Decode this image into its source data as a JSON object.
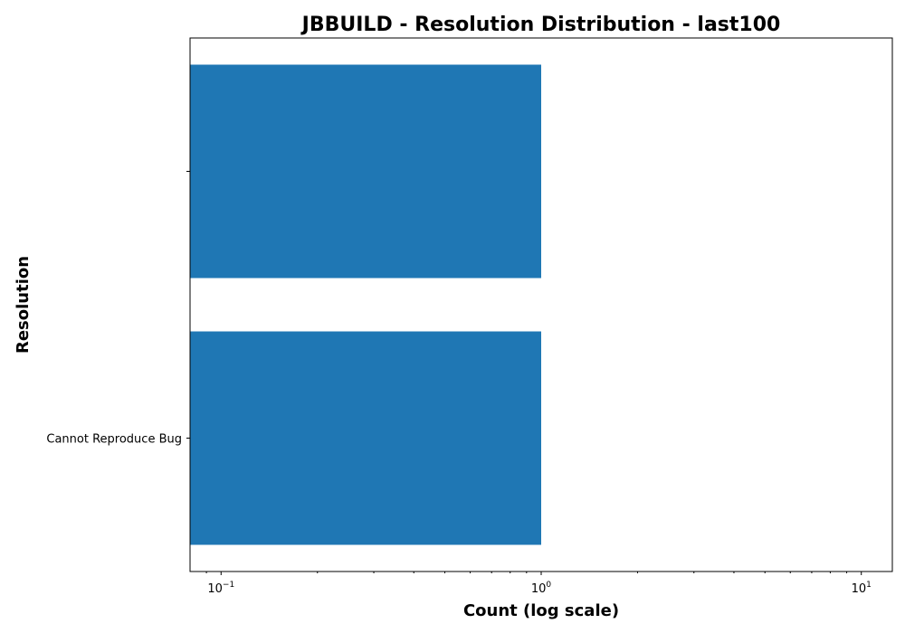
{
  "chart_data": {
    "type": "bar",
    "orientation": "horizontal",
    "title": "JBBUILD - Resolution Distribution - last100",
    "xlabel": "Count (log scale)",
    "ylabel": "Resolution",
    "x_scale": "log",
    "xlim": [
      0.08,
      12.5
    ],
    "categories": [
      "",
      "Cannot Reproduce Bug"
    ],
    "values": [
      1,
      1
    ],
    "x_ticks": [
      {
        "base": "10",
        "exp": "−1",
        "value": 0.1
      },
      {
        "base": "10",
        "exp": "0",
        "value": 1
      },
      {
        "base": "10",
        "exp": "1",
        "value": 10
      }
    ],
    "bar_color": "#1f77b4",
    "grid": false,
    "legend": "none"
  }
}
